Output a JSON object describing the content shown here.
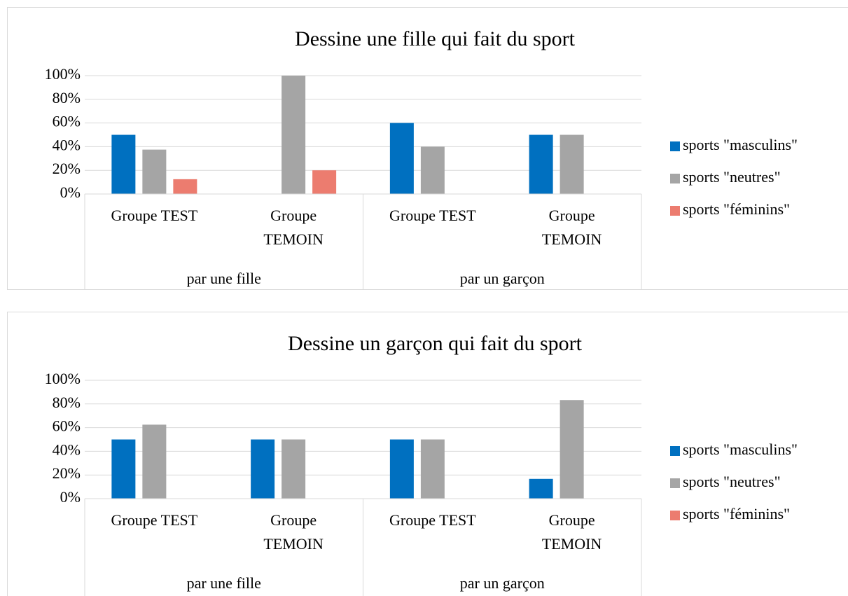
{
  "chart_data": [
    {
      "type": "bar",
      "title": "Dessine une fille qui fait du sport",
      "groups": [
        "par une fille",
        "par un garçon"
      ],
      "categories": [
        "Groupe TEST",
        "Groupe TEMOIN",
        "Groupe TEST",
        "Groupe TEMOIN"
      ],
      "series": [
        {
          "name": "sports \"masculins\"",
          "color": "#0070c0",
          "values": [
            50,
            0,
            60,
            50
          ]
        },
        {
          "name": "sports \"neutres\"",
          "color": "#a5a5a5",
          "values": [
            37.5,
            100,
            40,
            50
          ]
        },
        {
          "name": "sports \"féminins\"",
          "color": "#ec7c6f",
          "values": [
            12.5,
            20,
            0,
            0
          ]
        }
      ],
      "ylim": [
        0,
        100
      ],
      "yticks": [
        {
          "value": 0,
          "label": "0%"
        },
        {
          "value": 20,
          "label": "20%"
        },
        {
          "value": 40,
          "label": "40%"
        },
        {
          "value": 60,
          "label": "60%"
        },
        {
          "value": 80,
          "label": "80%"
        },
        {
          "value": 100,
          "label": "100%"
        }
      ],
      "grid": true,
      "legend": "right"
    },
    {
      "type": "bar",
      "title": "Dessine un garçon qui fait du sport",
      "groups": [
        "par une fille",
        "par un garçon"
      ],
      "categories": [
        "Groupe TEST",
        "Groupe TEMOIN",
        "Groupe TEST",
        "Groupe TEMOIN"
      ],
      "series": [
        {
          "name": "sports \"masculins\"",
          "color": "#0070c0",
          "values": [
            50,
            50,
            50,
            16.7
          ]
        },
        {
          "name": "sports \"neutres\"",
          "color": "#a5a5a5",
          "values": [
            62.5,
            50,
            50,
            83.3
          ]
        },
        {
          "name": "sports \"féminins\"",
          "color": "#ec7c6f",
          "values": [
            0,
            0,
            0,
            0
          ]
        }
      ],
      "ylim": [
        0,
        100
      ],
      "yticks": [
        {
          "value": 0,
          "label": "0%"
        },
        {
          "value": 20,
          "label": "20%"
        },
        {
          "value": 40,
          "label": "40%"
        },
        {
          "value": 60,
          "label": "60%"
        },
        {
          "value": 80,
          "label": "80%"
        },
        {
          "value": 100,
          "label": "100%"
        }
      ],
      "grid": true,
      "legend": "right"
    }
  ]
}
